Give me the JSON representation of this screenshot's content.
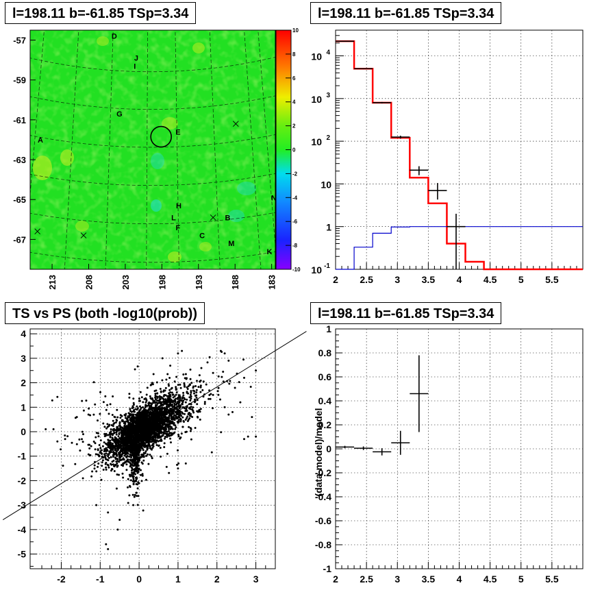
{
  "panels": {
    "map_title": "l=198.11 b=-61.85 TSp=3.34",
    "spectrum_title": "l=198.11 b=-61.85 TSp=3.34",
    "scatter_title": "TS vs PS (both -log10(prob))",
    "residual_title": "l=198.11 b=-61.85 TSp=3.34"
  },
  "chart_data": [
    {
      "type": "heatmap",
      "title": "l=198.11 b=-61.85 TSp=3.34",
      "x_ticks": [
        "213",
        "208",
        "203",
        "198",
        "193",
        "188",
        "183"
      ],
      "y_ticks": [
        "-57",
        "-59",
        "-61",
        "-63",
        "-65",
        "-67"
      ],
      "xlim": [
        216,
        182.5
      ],
      "ylim": [
        -68.5,
        -56.5
      ],
      "colorbar_ticks": [
        "10",
        "8",
        "6",
        "4",
        "2",
        "0",
        "-2",
        "-4",
        "-6",
        "-8",
        "-10"
      ],
      "colorbar_range": [
        -10,
        10
      ],
      "source_labels": [
        {
          "text": "D",
          "l": 204.5,
          "b": -56.8
        },
        {
          "text": "J",
          "l": 201.5,
          "b": -57.9
        },
        {
          "text": "I",
          "l": 201.7,
          "b": -58.3
        },
        {
          "text": "G",
          "l": 203.8,
          "b": -60.7
        },
        {
          "text": "E",
          "l": 195.8,
          "b": -61.6
        },
        {
          "text": "A",
          "l": 214.6,
          "b": -62.0
        },
        {
          "text": "H",
          "l": 195.7,
          "b": -65.3
        },
        {
          "text": "L",
          "l": 196.4,
          "b": -65.9
        },
        {
          "text": "F",
          "l": 195.8,
          "b": -66.4
        },
        {
          "text": "B",
          "l": 189.0,
          "b": -65.9
        },
        {
          "text": "N",
          "l": 182.7,
          "b": -64.9
        },
        {
          "text": "C",
          "l": 192.5,
          "b": -66.8
        },
        {
          "text": "M",
          "l": 188.5,
          "b": -67.2
        },
        {
          "text": "K",
          "l": 183.3,
          "b": -67.6
        }
      ],
      "crosses": [
        {
          "l": 187.9,
          "b": -61.2
        },
        {
          "l": 191.0,
          "b": -65.9
        },
        {
          "l": 215.0,
          "b": -66.6
        },
        {
          "l": 208.7,
          "b": -66.8
        }
      ],
      "target_circle": {
        "l": 198.11,
        "b": -61.85
      }
    },
    {
      "type": "line",
      "title": "l=198.11 b=-61.85 TSp=3.34",
      "x_ticks": [
        "2",
        "2.5",
        "3",
        "3.5",
        "4",
        "4.5",
        "5",
        "5.5"
      ],
      "y_ticks": [
        "10^-1",
        "1",
        "10",
        "10^2",
        "10^3",
        "10^4"
      ],
      "xlim": [
        2,
        6
      ],
      "ylim": [
        0.1,
        40000
      ],
      "y_scale": "log",
      "grid": true,
      "series": [
        {
          "color": "#ff0000",
          "edges": [
            2,
            2.3,
            2.6,
            2.9,
            3.2,
            3.5,
            3.8,
            4.1,
            4.4,
            6
          ],
          "values": [
            22000,
            5000,
            800,
            120,
            14,
            3.5,
            0.4,
            0.15,
            0.1
          ]
        },
        {
          "color": "#0000cc",
          "edges": [
            2,
            2.3,
            2.6,
            2.9,
            3.2,
            3.5,
            3.8,
            4.1,
            4.4,
            6
          ],
          "values": [
            0.1,
            0.33,
            0.7,
            0.98,
            1,
            1,
            1,
            1,
            1
          ]
        }
      ],
      "points": [
        {
          "x": 2.15,
          "y": 22000,
          "xerr": 0.15,
          "ylo": 21500,
          "yhi": 22500
        },
        {
          "x": 2.45,
          "y": 5000,
          "xerr": 0.15,
          "ylo": 4850,
          "yhi": 5150
        },
        {
          "x": 2.75,
          "y": 800,
          "xerr": 0.15,
          "ylo": 770,
          "yhi": 830
        },
        {
          "x": 3.05,
          "y": 125,
          "xerr": 0.15,
          "ylo": 115,
          "yhi": 135
        },
        {
          "x": 3.35,
          "y": 21,
          "xerr": 0.15,
          "ylo": 16,
          "yhi": 26
        },
        {
          "x": 3.65,
          "y": 7,
          "xerr": 0.15,
          "ylo": 4.3,
          "yhi": 10.5
        },
        {
          "x": 3.95,
          "y": 1,
          "xerr": 0.15,
          "ylo": 0.1,
          "yhi": 2
        }
      ]
    },
    {
      "type": "scatter",
      "title": "TS vs PS (both -log10(prob))",
      "x_ticks": [
        "-2",
        "-1",
        "0",
        "1",
        "2",
        "3"
      ],
      "y_ticks": [
        "4",
        "3",
        "2",
        "1",
        "0",
        "-1",
        "-2",
        "-3",
        "-4",
        "-5"
      ],
      "xlim": [
        -2.8,
        3.5
      ],
      "ylim": [
        -5.6,
        4.2
      ],
      "grid": true,
      "fit_line": {
        "x0": -3.5,
        "y0": -3.6,
        "x1": 4.3,
        "y1": 4.1
      }
    },
    {
      "type": "line",
      "title": "l=198.11 b=-61.85 TSp=3.34",
      "ylabel": "(data-model)/model",
      "x_ticks": [
        "2",
        "2.5",
        "3",
        "3.5",
        "4",
        "4.5",
        "5",
        "5.5"
      ],
      "y_ticks": [
        "1",
        "0.8",
        "0.6",
        "0.4",
        "0.2",
        "0",
        "-0.2",
        "-0.4",
        "-0.6",
        "-0.8",
        "-1"
      ],
      "xlim": [
        2,
        6
      ],
      "ylim": [
        -1,
        1
      ],
      "grid": true,
      "points": [
        {
          "x": 2.15,
          "y": 0.015,
          "xerr": 0.15,
          "yerr": 0.01
        },
        {
          "x": 2.45,
          "y": 0.005,
          "xerr": 0.15,
          "yerr": 0.015
        },
        {
          "x": 2.75,
          "y": -0.025,
          "xerr": 0.15,
          "yerr": 0.03
        },
        {
          "x": 3.05,
          "y": 0.05,
          "xerr": 0.15,
          "yerr": 0.1
        },
        {
          "x": 3.35,
          "y": 0.46,
          "xerr": 0.15,
          "yerr": 0.32
        }
      ]
    }
  ]
}
